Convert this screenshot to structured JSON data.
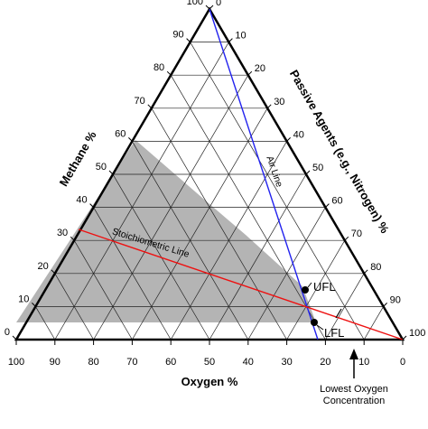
{
  "axes": {
    "methane_title": "Methane %",
    "oxygen_title": "Oxygen %",
    "passive_title": "Passive Agents (e.g., Nitrogen) %"
  },
  "ticks": {
    "left": [
      "100",
      "90",
      "80",
      "70",
      "60",
      "50",
      "40",
      "30",
      "20",
      "10",
      "0"
    ],
    "bottom": [
      "100",
      "90",
      "80",
      "70",
      "60",
      "50",
      "40",
      "30",
      "20",
      "10",
      "0"
    ],
    "right": [
      "0",
      "10",
      "20",
      "30",
      "40",
      "50",
      "60",
      "70",
      "80",
      "90",
      "100"
    ]
  },
  "labels": {
    "air_line": "Air Line",
    "stoichiometric_line": "Stoichiometric Line",
    "ufl": "UFL",
    "lfl": "LFL",
    "loc_line1": "Lowest Oxygen",
    "loc_line2": "Concentration"
  },
  "colors": {
    "air_line": "#2222ee",
    "stoichiometric_line": "#ee1111",
    "flammable_region": "#b4b4b4",
    "grid": "#222222"
  }
}
